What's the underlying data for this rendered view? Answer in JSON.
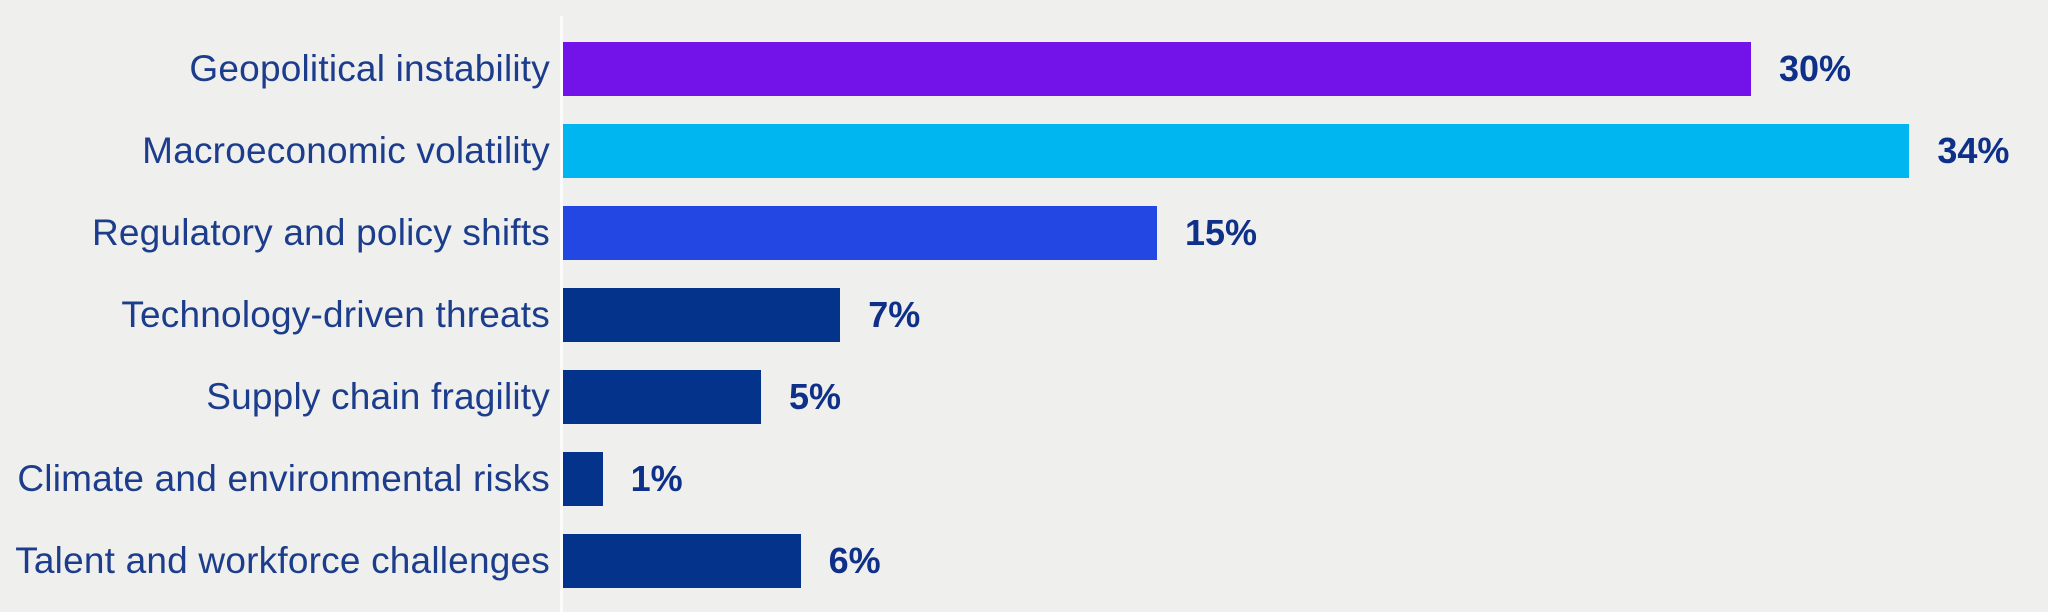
{
  "chart_data": {
    "type": "bar",
    "orientation": "horizontal",
    "title": "",
    "xlabel": "",
    "ylabel": "",
    "grid": false,
    "legend": false,
    "xlim": [
      0,
      37.5
    ],
    "categories": [
      "Geopolitical instability",
      "Macroeconomic volatility",
      "Regulatory and policy shifts",
      "Technology-driven threats",
      "Supply chain fragility",
      "Climate and environmental risks",
      "Talent and workforce challenges"
    ],
    "values": [
      30,
      34,
      15,
      7,
      5,
      1,
      6
    ],
    "value_labels": [
      "30%",
      "34%",
      "15%",
      "7%",
      "5%",
      "1%",
      "6%"
    ],
    "colors": [
      "#7413e9",
      "#00b6f1",
      "#2247e2",
      "#04338c",
      "#04338c",
      "#04338c",
      "#04338c"
    ],
    "background_color": "#efefee",
    "label_color": "#1c3c8c",
    "value_color": "#0f3089",
    "axis_line_color": "#fbfbfb"
  }
}
